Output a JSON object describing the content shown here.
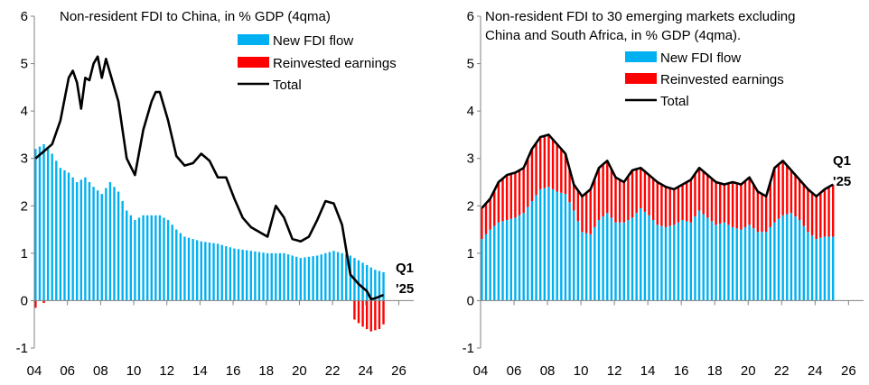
{
  "chart_data": [
    {
      "type": "bar",
      "title": "Non-resident FDI to China, in % GDP (4qma)",
      "xlabel": "",
      "ylabel": "",
      "ylim": [
        -1,
        6
      ],
      "yticks": [
        -1,
        0,
        1,
        2,
        3,
        4,
        5,
        6
      ],
      "xlim": [
        2004,
        2026.9
      ],
      "xticks": [
        2004,
        2006,
        2008,
        2010,
        2012,
        2014,
        2016,
        2018,
        2020,
        2022,
        2024,
        2026
      ],
      "xtick_labels": [
        "04",
        "06",
        "08",
        "10",
        "12",
        "14",
        "16",
        "18",
        "20",
        "22",
        "24",
        "26"
      ],
      "annotation": [
        "Q1",
        "'25"
      ],
      "grid": false,
      "legend_position": "top-right",
      "bar_knots": [
        [
          2004.0,
          3.2
        ],
        [
          2004.5,
          3.3
        ],
        [
          2005.0,
          3.1
        ],
        [
          2005.5,
          2.8
        ],
        [
          2006.0,
          2.7
        ],
        [
          2006.5,
          2.5
        ],
        [
          2007.0,
          2.6
        ],
        [
          2007.5,
          2.4
        ],
        [
          2008.0,
          2.25
        ],
        [
          2008.5,
          2.5
        ],
        [
          2009.0,
          2.3
        ],
        [
          2009.5,
          1.9
        ],
        [
          2010.0,
          1.7
        ],
        [
          2010.5,
          1.8
        ],
        [
          2011.0,
          1.8
        ],
        [
          2011.5,
          1.8
        ],
        [
          2012.0,
          1.7
        ],
        [
          2012.5,
          1.5
        ],
        [
          2013.0,
          1.35
        ],
        [
          2013.5,
          1.3
        ],
        [
          2014.0,
          1.25
        ],
        [
          2015.0,
          1.2
        ],
        [
          2016.0,
          1.1
        ],
        [
          2017.0,
          1.05
        ],
        [
          2018.0,
          1.0
        ],
        [
          2019.0,
          1.0
        ],
        [
          2020.0,
          0.9
        ],
        [
          2021.0,
          0.95
        ],
        [
          2022.0,
          1.05
        ],
        [
          2022.5,
          1.0
        ],
        [
          2023.0,
          0.95
        ],
        [
          2023.5,
          0.85
        ],
        [
          2024.0,
          0.75
        ],
        [
          2024.5,
          0.65
        ],
        [
          2025.0,
          0.6
        ]
      ],
      "reinvested_knots": [
        [
          2004.0,
          -0.15
        ],
        [
          2004.25,
          0.0
        ],
        [
          2004.5,
          -0.05
        ],
        [
          2004.75,
          0.0
        ],
        [
          2023.0,
          0.0
        ],
        [
          2023.25,
          -0.4
        ],
        [
          2023.75,
          -0.55
        ],
        [
          2024.25,
          -0.65
        ],
        [
          2024.75,
          -0.6
        ],
        [
          2025.0,
          -0.5
        ]
      ],
      "total_knots": [
        [
          2004.0,
          3.0
        ],
        [
          2004.5,
          3.15
        ],
        [
          2005.0,
          3.3
        ],
        [
          2005.5,
          3.8
        ],
        [
          2006.0,
          4.7
        ],
        [
          2006.25,
          4.85
        ],
        [
          2006.5,
          4.6
        ],
        [
          2006.75,
          4.05
        ],
        [
          2007.0,
          4.7
        ],
        [
          2007.25,
          4.65
        ],
        [
          2007.5,
          5.0
        ],
        [
          2007.75,
          5.15
        ],
        [
          2008.0,
          4.7
        ],
        [
          2008.25,
          5.1
        ],
        [
          2008.5,
          4.8
        ],
        [
          2009.0,
          4.2
        ],
        [
          2009.5,
          3.0
        ],
        [
          2010.0,
          2.65
        ],
        [
          2010.5,
          3.6
        ],
        [
          2011.0,
          4.2
        ],
        [
          2011.25,
          4.4
        ],
        [
          2011.5,
          4.4
        ],
        [
          2012.0,
          3.8
        ],
        [
          2012.5,
          3.05
        ],
        [
          2013.0,
          2.85
        ],
        [
          2013.5,
          2.9
        ],
        [
          2014.0,
          3.1
        ],
        [
          2014.5,
          2.95
        ],
        [
          2015.0,
          2.6
        ],
        [
          2015.5,
          2.6
        ],
        [
          2016.0,
          2.15
        ],
        [
          2016.5,
          1.75
        ],
        [
          2017.0,
          1.55
        ],
        [
          2017.5,
          1.45
        ],
        [
          2018.0,
          1.35
        ],
        [
          2018.5,
          2.0
        ],
        [
          2019.0,
          1.75
        ],
        [
          2019.5,
          1.3
        ],
        [
          2020.0,
          1.25
        ],
        [
          2020.5,
          1.35
        ],
        [
          2021.0,
          1.7
        ],
        [
          2021.5,
          2.1
        ],
        [
          2022.0,
          2.05
        ],
        [
          2022.5,
          1.6
        ],
        [
          2023.0,
          0.55
        ],
        [
          2023.5,
          0.35
        ],
        [
          2024.0,
          0.2
        ],
        [
          2024.25,
          0.03
        ],
        [
          2024.5,
          0.05
        ],
        [
          2025.0,
          0.12
        ]
      ],
      "quarters": [
        2004.0,
        2025.0
      ],
      "series": [
        {
          "name": "New FDI flow",
          "color": "#00b0f0",
          "kind": "bar"
        },
        {
          "name": "Reinvested earnings",
          "color": "#ff0000",
          "kind": "bar"
        },
        {
          "name": "Total",
          "color": "#000000",
          "kind": "line"
        }
      ]
    },
    {
      "type": "bar",
      "title_lines": [
        "Non-resident FDI to 30 emerging markets excluding",
        "China and South Africa, in % GDP (4qma)."
      ],
      "xlabel": "",
      "ylabel": "",
      "ylim": [
        -1,
        6
      ],
      "yticks": [
        -1,
        0,
        1,
        2,
        3,
        4,
        5,
        6
      ],
      "xlim": [
        2004,
        2026.9
      ],
      "xticks": [
        2004,
        2006,
        2008,
        2010,
        2012,
        2014,
        2016,
        2018,
        2020,
        2022,
        2024,
        2026
      ],
      "xtick_labels": [
        "04",
        "06",
        "08",
        "10",
        "12",
        "14",
        "16",
        "18",
        "20",
        "22",
        "24",
        "26"
      ],
      "annotation": [
        "Q1",
        "'25"
      ],
      "grid": false,
      "legend_position": "top-right",
      "bar_knots": [
        [
          2004.0,
          1.3
        ],
        [
          2004.5,
          1.5
        ],
        [
          2005.0,
          1.65
        ],
        [
          2005.5,
          1.7
        ],
        [
          2006.0,
          1.75
        ],
        [
          2006.5,
          1.85
        ],
        [
          2007.0,
          2.1
        ],
        [
          2007.5,
          2.35
        ],
        [
          2008.0,
          2.4
        ],
        [
          2008.5,
          2.3
        ],
        [
          2009.0,
          2.25
        ],
        [
          2009.5,
          1.9
        ],
        [
          2010.0,
          1.45
        ],
        [
          2010.5,
          1.4
        ],
        [
          2011.0,
          1.7
        ],
        [
          2011.5,
          1.85
        ],
        [
          2012.0,
          1.65
        ],
        [
          2012.5,
          1.65
        ],
        [
          2013.0,
          1.75
        ],
        [
          2013.5,
          1.95
        ],
        [
          2014.0,
          1.8
        ],
        [
          2014.5,
          1.6
        ],
        [
          2015.0,
          1.55
        ],
        [
          2015.5,
          1.6
        ],
        [
          2016.0,
          1.7
        ],
        [
          2016.5,
          1.65
        ],
        [
          2017.0,
          1.9
        ],
        [
          2017.5,
          1.75
        ],
        [
          2018.0,
          1.6
        ],
        [
          2018.5,
          1.65
        ],
        [
          2019.0,
          1.55
        ],
        [
          2019.5,
          1.5
        ],
        [
          2020.0,
          1.6
        ],
        [
          2020.5,
          1.45
        ],
        [
          2021.0,
          1.45
        ],
        [
          2021.5,
          1.65
        ],
        [
          2022.0,
          1.8
        ],
        [
          2022.5,
          1.85
        ],
        [
          2023.0,
          1.7
        ],
        [
          2023.5,
          1.45
        ],
        [
          2024.0,
          1.3
        ],
        [
          2024.5,
          1.35
        ],
        [
          2025.0,
          1.35
        ]
      ],
      "total_knots": [
        [
          2004.0,
          1.95
        ],
        [
          2004.5,
          2.15
        ],
        [
          2005.0,
          2.5
        ],
        [
          2005.5,
          2.65
        ],
        [
          2006.0,
          2.7
        ],
        [
          2006.5,
          2.8
        ],
        [
          2007.0,
          3.2
        ],
        [
          2007.5,
          3.45
        ],
        [
          2008.0,
          3.5
        ],
        [
          2008.5,
          3.3
        ],
        [
          2009.0,
          3.1
        ],
        [
          2009.5,
          2.45
        ],
        [
          2010.0,
          2.2
        ],
        [
          2010.5,
          2.35
        ],
        [
          2011.0,
          2.8
        ],
        [
          2011.5,
          2.95
        ],
        [
          2012.0,
          2.6
        ],
        [
          2012.5,
          2.5
        ],
        [
          2013.0,
          2.75
        ],
        [
          2013.5,
          2.8
        ],
        [
          2014.0,
          2.65
        ],
        [
          2014.5,
          2.5
        ],
        [
          2015.0,
          2.4
        ],
        [
          2015.5,
          2.35
        ],
        [
          2016.0,
          2.45
        ],
        [
          2016.5,
          2.55
        ],
        [
          2017.0,
          2.8
        ],
        [
          2017.5,
          2.65
        ],
        [
          2018.0,
          2.5
        ],
        [
          2018.5,
          2.45
        ],
        [
          2019.0,
          2.5
        ],
        [
          2019.5,
          2.45
        ],
        [
          2020.0,
          2.6
        ],
        [
          2020.5,
          2.3
        ],
        [
          2021.0,
          2.2
        ],
        [
          2021.5,
          2.8
        ],
        [
          2022.0,
          2.95
        ],
        [
          2022.5,
          2.75
        ],
        [
          2023.0,
          2.55
        ],
        [
          2023.5,
          2.35
        ],
        [
          2024.0,
          2.2
        ],
        [
          2024.5,
          2.35
        ],
        [
          2025.0,
          2.45
        ]
      ],
      "quarters": [
        2004.0,
        2025.0
      ],
      "series": [
        {
          "name": "New FDI flow",
          "color": "#00b0f0",
          "kind": "bar"
        },
        {
          "name": "Reinvested earnings",
          "color": "#ff0000",
          "kind": "bar"
        },
        {
          "name": "Total",
          "color": "#000000",
          "kind": "line"
        }
      ]
    }
  ]
}
